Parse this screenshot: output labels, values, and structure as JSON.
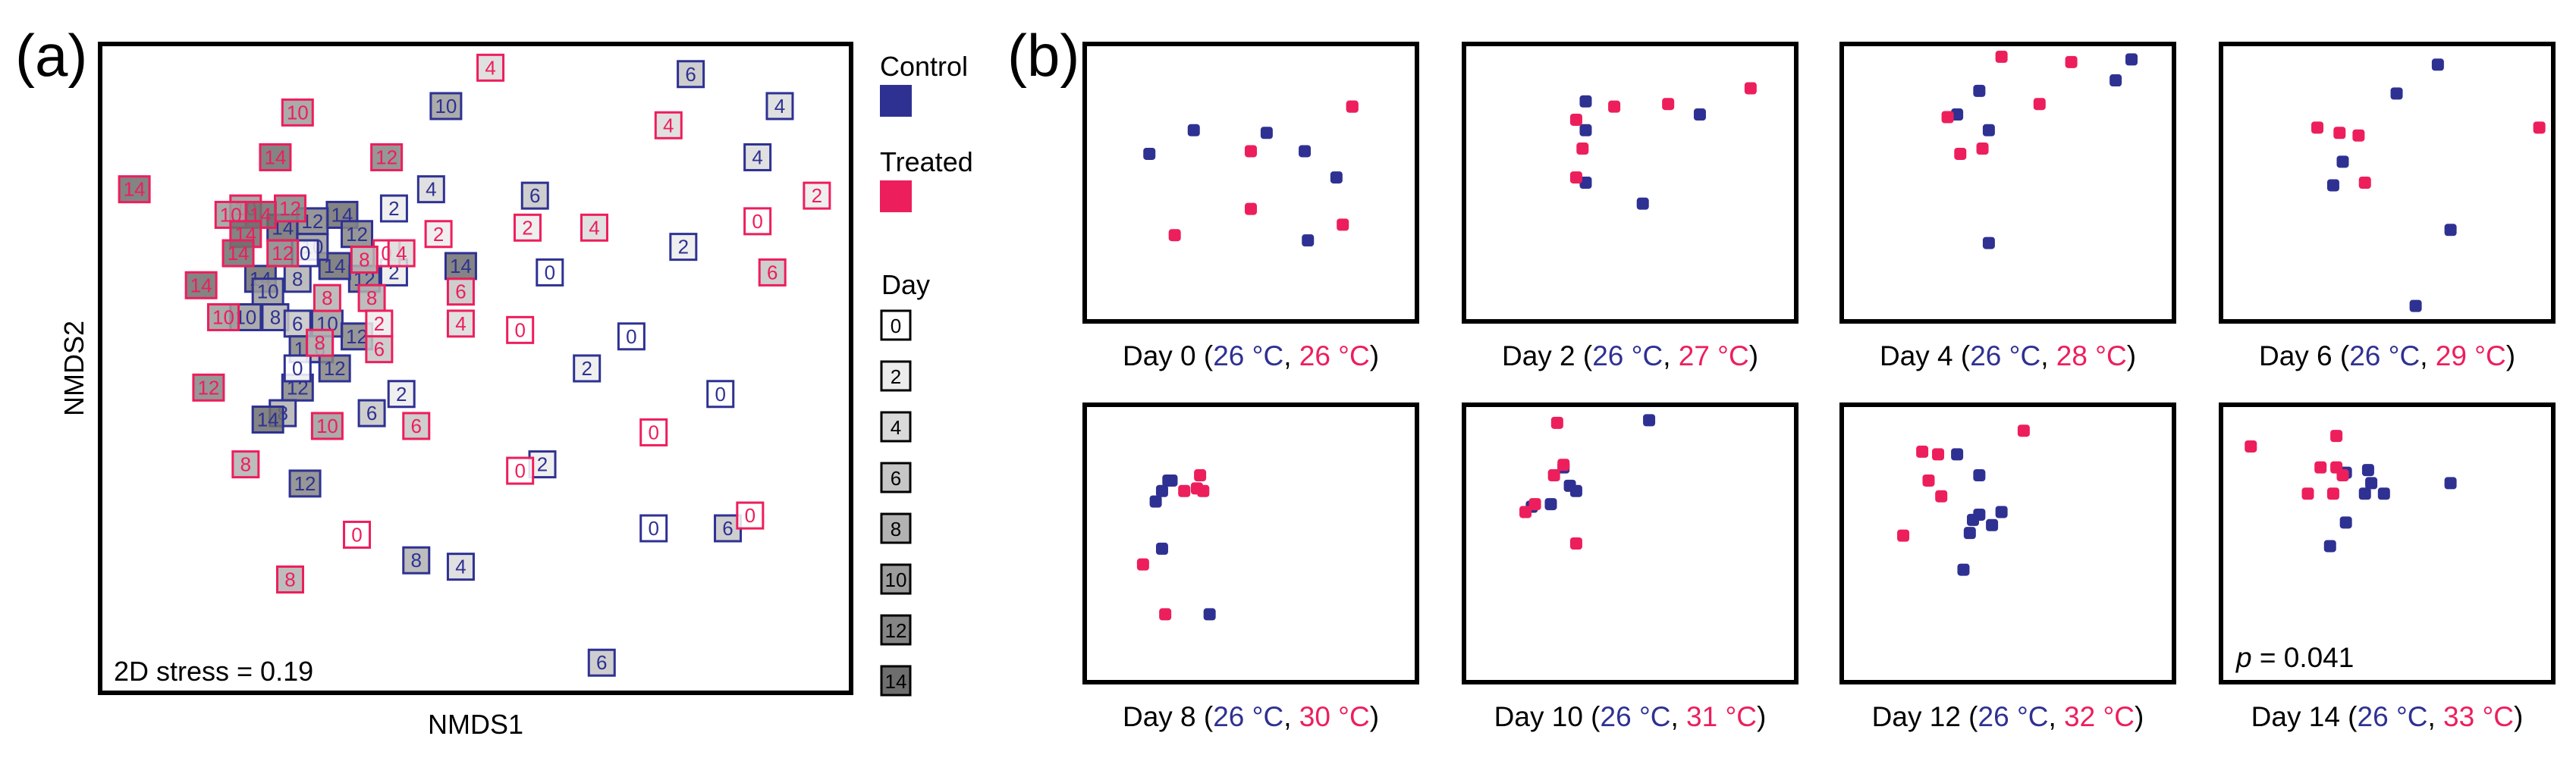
{
  "colors": {
    "control": "#2e3192",
    "treated": "#ed1e5c"
  },
  "panel_a": {
    "label": "(a)",
    "xlabel": "NMDS1",
    "ylabel": "NMDS2",
    "stress": "2D stress = 0.19",
    "legend": {
      "control": "Control",
      "treated": "Treated",
      "day_title": "Day",
      "days": [
        "0",
        "2",
        "4",
        "6",
        "8",
        "10",
        "12",
        "14"
      ],
      "day_fills": [
        "#ffffff",
        "#ececec",
        "#dadada",
        "#c6c6c6",
        "#b2b2b2",
        "#9c9c9c",
        "#858585",
        "#6e6e6e"
      ]
    }
  },
  "panel_b": {
    "label": "(b)",
    "annotation_p_prefix": "p",
    "annotation_p_value": " = 0.041"
  },
  "chart_data": [
    {
      "type": "scatter",
      "xlabel": "NMDS1",
      "ylabel": "NMDS2",
      "xlim": [
        0,
        1
      ],
      "ylim": [
        0,
        1
      ],
      "annotation": "2D stress = 0.19",
      "series": [
        {
          "name": "Control",
          "points": [
            {
              "x": 0.79,
              "y": 0.96,
              "day": 6
            },
            {
              "x": 0.91,
              "y": 0.91,
              "day": 4
            },
            {
              "x": 0.46,
              "y": 0.91,
              "day": 10
            },
            {
              "x": 0.88,
              "y": 0.83,
              "day": 4
            },
            {
              "x": 0.44,
              "y": 0.78,
              "day": 4
            },
            {
              "x": 0.58,
              "y": 0.77,
              "day": 6
            },
            {
              "x": 0.39,
              "y": 0.75,
              "day": 2
            },
            {
              "x": 0.78,
              "y": 0.69,
              "day": 2
            },
            {
              "x": 0.6,
              "y": 0.65,
              "day": 0
            },
            {
              "x": 0.39,
              "y": 0.65,
              "day": 2
            },
            {
              "x": 0.48,
              "y": 0.66,
              "day": 14
            },
            {
              "x": 0.32,
              "y": 0.74,
              "day": 14
            },
            {
              "x": 0.24,
              "y": 0.72,
              "day": 14
            },
            {
              "x": 0.34,
              "y": 0.71,
              "day": 12
            },
            {
              "x": 0.28,
              "y": 0.73,
              "day": 12
            },
            {
              "x": 0.35,
              "y": 0.64,
              "day": 12
            },
            {
              "x": 0.31,
              "y": 0.66,
              "day": 14
            },
            {
              "x": 0.28,
              "y": 0.69,
              "day": 10
            },
            {
              "x": 0.26,
              "y": 0.64,
              "day": 8
            },
            {
              "x": 0.21,
              "y": 0.64,
              "day": 14
            },
            {
              "x": 0.22,
              "y": 0.62,
              "day": 10
            },
            {
              "x": 0.19,
              "y": 0.58,
              "day": 10
            },
            {
              "x": 0.23,
              "y": 0.58,
              "day": 8
            },
            {
              "x": 0.26,
              "y": 0.57,
              "day": 6
            },
            {
              "x": 0.3,
              "y": 0.57,
              "day": 10
            },
            {
              "x": 0.27,
              "y": 0.53,
              "day": 12
            },
            {
              "x": 0.34,
              "y": 0.55,
              "day": 12
            },
            {
              "x": 0.29,
              "y": 0.53,
              "day": 6
            },
            {
              "x": 0.31,
              "y": 0.5,
              "day": 12
            },
            {
              "x": 0.26,
              "y": 0.47,
              "day": 12
            },
            {
              "x": 0.4,
              "y": 0.46,
              "day": 2
            },
            {
              "x": 0.36,
              "y": 0.43,
              "day": 6
            },
            {
              "x": 0.24,
              "y": 0.43,
              "day": 8
            },
            {
              "x": 0.22,
              "y": 0.42,
              "day": 14
            },
            {
              "x": 0.27,
              "y": 0.32,
              "day": 12
            },
            {
              "x": 0.71,
              "y": 0.55,
              "day": 0
            },
            {
              "x": 0.65,
              "y": 0.5,
              "day": 2
            },
            {
              "x": 0.83,
              "y": 0.46,
              "day": 0
            },
            {
              "x": 0.59,
              "y": 0.35,
              "day": 2
            },
            {
              "x": 0.74,
              "y": 0.25,
              "day": 0
            },
            {
              "x": 0.84,
              "y": 0.25,
              "day": 6
            },
            {
              "x": 0.42,
              "y": 0.2,
              "day": 8
            },
            {
              "x": 0.48,
              "y": 0.19,
              "day": 4
            },
            {
              "x": 0.67,
              "y": 0.04,
              "day": 6
            },
            {
              "x": 0.27,
              "y": 0.68,
              "day": 0
            },
            {
              "x": 0.26,
              "y": 0.5,
              "day": 0
            }
          ]
        },
        {
          "name": "Treated",
          "points": [
            {
              "x": 0.52,
              "y": 0.97,
              "day": 4
            },
            {
              "x": 0.26,
              "y": 0.9,
              "day": 10
            },
            {
              "x": 0.76,
              "y": 0.88,
              "day": 4
            },
            {
              "x": 0.23,
              "y": 0.83,
              "day": 14
            },
            {
              "x": 0.38,
              "y": 0.83,
              "day": 12
            },
            {
              "x": 0.04,
              "y": 0.78,
              "day": 14
            },
            {
              "x": 0.96,
              "y": 0.77,
              "day": 2
            },
            {
              "x": 0.19,
              "y": 0.75,
              "day": 10
            },
            {
              "x": 0.25,
              "y": 0.75,
              "day": 12
            },
            {
              "x": 0.21,
              "y": 0.74,
              "day": 14
            },
            {
              "x": 0.17,
              "y": 0.74,
              "day": 10
            },
            {
              "x": 0.88,
              "y": 0.73,
              "day": 0
            },
            {
              "x": 0.19,
              "y": 0.71,
              "day": 14
            },
            {
              "x": 0.57,
              "y": 0.72,
              "day": 2
            },
            {
              "x": 0.66,
              "y": 0.72,
              "day": 4
            },
            {
              "x": 0.45,
              "y": 0.71,
              "day": 2
            },
            {
              "x": 0.18,
              "y": 0.68,
              "day": 14
            },
            {
              "x": 0.24,
              "y": 0.68,
              "day": 12
            },
            {
              "x": 0.38,
              "y": 0.68,
              "day": 0
            },
            {
              "x": 0.4,
              "y": 0.68,
              "day": 4
            },
            {
              "x": 0.35,
              "y": 0.67,
              "day": 8
            },
            {
              "x": 0.9,
              "y": 0.65,
              "day": 6
            },
            {
              "x": 0.48,
              "y": 0.62,
              "day": 6
            },
            {
              "x": 0.13,
              "y": 0.63,
              "day": 14
            },
            {
              "x": 0.36,
              "y": 0.61,
              "day": 8
            },
            {
              "x": 0.3,
              "y": 0.61,
              "day": 8
            },
            {
              "x": 0.16,
              "y": 0.58,
              "day": 10
            },
            {
              "x": 0.48,
              "y": 0.57,
              "day": 4
            },
            {
              "x": 0.37,
              "y": 0.57,
              "day": 2
            },
            {
              "x": 0.56,
              "y": 0.56,
              "day": 0
            },
            {
              "x": 0.29,
              "y": 0.54,
              "day": 8
            },
            {
              "x": 0.37,
              "y": 0.53,
              "day": 6
            },
            {
              "x": 0.14,
              "y": 0.47,
              "day": 12
            },
            {
              "x": 0.3,
              "y": 0.41,
              "day": 10
            },
            {
              "x": 0.42,
              "y": 0.41,
              "day": 6
            },
            {
              "x": 0.74,
              "y": 0.4,
              "day": 0
            },
            {
              "x": 0.56,
              "y": 0.34,
              "day": 0
            },
            {
              "x": 0.19,
              "y": 0.35,
              "day": 8
            },
            {
              "x": 0.87,
              "y": 0.27,
              "day": 0
            },
            {
              "x": 0.34,
              "y": 0.24,
              "day": 0
            },
            {
              "x": 0.25,
              "y": 0.17,
              "day": 8
            }
          ]
        }
      ]
    },
    {
      "type": "scatter",
      "panels": [
        {
          "day_label": "Day 0",
          "control_temp": "26 °C",
          "treated_temp": "26 °C",
          "control": [
            [
              0.32,
              0.7
            ],
            [
              0.18,
              0.61
            ],
            [
              0.55,
              0.69
            ],
            [
              0.67,
              0.62
            ],
            [
              0.77,
              0.52
            ],
            [
              0.68,
              0.28
            ]
          ],
          "treated": [
            [
              0.26,
              0.3
            ],
            [
              0.5,
              0.62
            ],
            [
              0.5,
              0.4
            ],
            [
              0.82,
              0.79
            ],
            [
              0.79,
              0.34
            ],
            [
              0.82,
              0.79
            ]
          ]
        },
        {
          "day_label": "Day 2",
          "control_temp": "26 °C",
          "treated_temp": "27 °C",
          "control": [
            [
              0.36,
              0.81
            ],
            [
              0.36,
              0.7
            ],
            [
              0.36,
              0.5
            ],
            [
              0.54,
              0.42
            ],
            [
              0.72,
              0.76
            ]
          ],
          "treated": [
            [
              0.33,
              0.74
            ],
            [
              0.45,
              0.79
            ],
            [
              0.35,
              0.63
            ],
            [
              0.62,
              0.8
            ],
            [
              0.33,
              0.52
            ],
            [
              0.88,
              0.86
            ]
          ]
        },
        {
          "day_label": "Day 4",
          "control_temp": "26 °C",
          "treated_temp": "28 °C",
          "control": [
            [
              0.41,
              0.85
            ],
            [
              0.34,
              0.76
            ],
            [
              0.44,
              0.7
            ],
            [
              0.89,
              0.97
            ],
            [
              0.84,
              0.89
            ],
            [
              0.44,
              0.27
            ]
          ],
          "treated": [
            [
              0.48,
              0.98
            ],
            [
              0.7,
              0.96
            ],
            [
              0.6,
              0.8
            ],
            [
              0.31,
              0.75
            ],
            [
              0.35,
              0.61
            ],
            [
              0.42,
              0.63
            ]
          ]
        },
        {
          "day_label": "Day 6",
          "control_temp": "26 °C",
          "treated_temp": "29 °C",
          "control": [
            [
              0.53,
              0.84
            ],
            [
              0.36,
              0.58
            ],
            [
              0.33,
              0.49
            ],
            [
              0.7,
              0.32
            ],
            [
              0.66,
              0.95
            ],
            [
              0.59,
              0.03
            ]
          ],
          "treated": [
            [
              0.28,
              0.71
            ],
            [
              0.35,
              0.69
            ],
            [
              0.41,
              0.68
            ],
            [
              0.43,
              0.5
            ],
            [
              0.98,
              0.71
            ]
          ]
        },
        {
          "day_label": "Day 8",
          "control_temp": "26 °C",
          "treated_temp": "30 °C",
          "control": [
            [
              0.24,
              0.74
            ],
            [
              0.25,
              0.74
            ],
            [
              0.22,
              0.7
            ],
            [
              0.2,
              0.66
            ],
            [
              0.22,
              0.48
            ],
            [
              0.37,
              0.23
            ]
          ],
          "treated": [
            [
              0.29,
              0.7
            ],
            [
              0.33,
              0.71
            ],
            [
              0.35,
              0.7
            ],
            [
              0.34,
              0.76
            ],
            [
              0.16,
              0.42
            ],
            [
              0.23,
              0.23
            ]
          ]
        },
        {
          "day_label": "Day 10",
          "control_temp": "26 °C",
          "treated_temp": "31 °C",
          "control": [
            [
              0.56,
              0.97
            ],
            [
              0.29,
              0.79
            ],
            [
              0.33,
              0.7
            ],
            [
              0.25,
              0.65
            ],
            [
              0.19,
              0.64
            ],
            [
              0.31,
              0.72
            ]
          ],
          "treated": [
            [
              0.27,
              0.96
            ],
            [
              0.29,
              0.8
            ],
            [
              0.26,
              0.76
            ],
            [
              0.17,
              0.62
            ],
            [
              0.2,
              0.65
            ],
            [
              0.33,
              0.5
            ]
          ]
        },
        {
          "day_label": "Day 12",
          "control_temp": "26 °C",
          "treated_temp": "32 °C",
          "control": [
            [
              0.34,
              0.84
            ],
            [
              0.41,
              0.76
            ],
            [
              0.41,
              0.61
            ],
            [
              0.39,
              0.59
            ],
            [
              0.38,
              0.54
            ],
            [
              0.45,
              0.57
            ],
            [
              0.48,
              0.62
            ],
            [
              0.36,
              0.4
            ]
          ],
          "treated": [
            [
              0.23,
              0.85
            ],
            [
              0.28,
              0.84
            ],
            [
              0.55,
              0.93
            ],
            [
              0.25,
              0.74
            ],
            [
              0.29,
              0.68
            ],
            [
              0.17,
              0.53
            ]
          ]
        },
        {
          "day_label": "Day 14",
          "control_temp": "26 °C",
          "treated_temp": "33 °C",
          "control": [
            [
              0.37,
              0.77
            ],
            [
              0.44,
              0.78
            ],
            [
              0.45,
              0.73
            ],
            [
              0.43,
              0.69
            ],
            [
              0.49,
              0.69
            ],
            [
              0.37,
              0.58
            ],
            [
              0.7,
              0.73
            ],
            [
              0.32,
              0.49
            ]
          ],
          "treated": [
            [
              0.07,
              0.87
            ],
            [
              0.34,
              0.91
            ],
            [
              0.29,
              0.79
            ],
            [
              0.34,
              0.79
            ],
            [
              0.36,
              0.76
            ],
            [
              0.25,
              0.69
            ],
            [
              0.33,
              0.69
            ]
          ]
        }
      ],
      "annotation": "p = 0.041"
    }
  ]
}
